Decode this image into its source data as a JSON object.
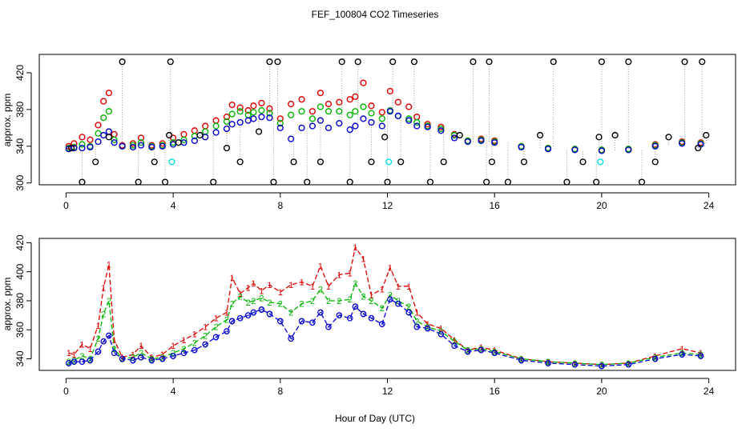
{
  "title": "FEF_100804  CO2 Timeseries",
  "xlabel": "Hour of Day (UTC)",
  "colors": {
    "c1": "#e00000",
    "c2": "#00b400",
    "c3": "#0000d0",
    "black": "#000000",
    "cyan": "#00e0e0",
    "grey": "#999999"
  },
  "chart_data": [
    {
      "type": "scatter",
      "ylabel": "approx. ppm",
      "xlim": [
        -1,
        25
      ],
      "ylim": [
        298,
        440
      ],
      "xticks": [
        "0",
        "4",
        "8",
        "12",
        "16",
        "20",
        "24"
      ],
      "yticks": [
        "300",
        "340",
        "380",
        "420"
      ],
      "xtick_values": [
        0,
        4,
        8,
        12,
        16,
        20,
        24
      ],
      "ytick_values": [
        300,
        340,
        380,
        420
      ],
      "grid": false,
      "series": [
        {
          "color": "#e00000",
          "x": [
            0.1,
            0.3,
            0.6,
            0.9,
            1.2,
            1.4,
            1.6,
            1.8,
            2.1,
            2.5,
            2.8,
            3.2,
            3.6,
            4.0,
            4.4,
            4.8,
            5.2,
            5.6,
            6.0,
            6.2,
            6.5,
            6.8,
            7.0,
            7.3,
            7.6,
            8.0,
            8.4,
            8.8,
            9.2,
            9.5,
            9.8,
            10.2,
            10.6,
            10.8,
            11.1,
            11.4,
            11.8,
            12.1,
            12.4,
            12.8,
            13.1,
            13.5,
            14.0,
            14.5,
            15.0,
            15.5,
            16.0,
            17.0,
            18.0,
            19.0,
            20.0,
            21.0,
            22.0,
            23.0,
            23.7
          ],
          "y": [
            340,
            343,
            350,
            347,
            363,
            389,
            398,
            353,
            341,
            343,
            349,
            341,
            343,
            349,
            353,
            357,
            362,
            368,
            372,
            385,
            382,
            379,
            384,
            387,
            381,
            370,
            386,
            391,
            378,
            398,
            386,
            388,
            391,
            394,
            409,
            384,
            377,
            400,
            388,
            383,
            372,
            364,
            361,
            353,
            346,
            348,
            346,
            340,
            338,
            337,
            336,
            337,
            342,
            345,
            344
          ]
        },
        {
          "color": "#00b400",
          "x": [
            0.1,
            0.3,
            0.6,
            0.9,
            1.2,
            1.4,
            1.6,
            1.8,
            2.1,
            2.5,
            2.8,
            3.2,
            3.6,
            4.0,
            4.4,
            4.8,
            5.2,
            5.6,
            6.0,
            6.2,
            6.5,
            6.8,
            7.0,
            7.3,
            7.6,
            8.0,
            8.4,
            8.8,
            9.2,
            9.5,
            9.8,
            10.2,
            10.6,
            10.8,
            11.1,
            11.4,
            11.8,
            12.1,
            12.4,
            12.8,
            13.1,
            13.5,
            14.0,
            14.5,
            15.0,
            15.5,
            16.0,
            17.0,
            18.0,
            19.0,
            20.0,
            21.0,
            22.0,
            23.0,
            23.7
          ],
          "y": [
            338,
            339,
            342,
            340,
            354,
            371,
            378,
            347,
            340,
            341,
            344,
            340,
            341,
            344,
            347,
            351,
            356,
            362,
            367,
            375,
            378,
            374,
            377,
            379,
            376,
            365,
            374,
            378,
            370,
            383,
            378,
            378,
            374,
            378,
            383,
            376,
            370,
            379,
            373,
            370,
            366,
            362,
            359,
            352,
            346,
            347,
            345,
            340,
            338,
            337,
            336,
            337,
            341,
            344,
            343
          ]
        },
        {
          "color": "#0000d0",
          "x": [
            0.1,
            0.3,
            0.6,
            0.9,
            1.2,
            1.4,
            1.6,
            1.8,
            2.1,
            2.5,
            2.8,
            3.2,
            3.6,
            4.0,
            4.4,
            4.8,
            5.2,
            5.6,
            6.0,
            6.2,
            6.5,
            6.8,
            7.0,
            7.3,
            7.6,
            8.0,
            8.4,
            8.8,
            9.2,
            9.5,
            9.8,
            10.2,
            10.6,
            10.8,
            11.1,
            11.4,
            11.8,
            12.1,
            12.4,
            12.8,
            13.1,
            13.5,
            14.0,
            14.5,
            15.0,
            15.5,
            16.0,
            17.0,
            18.0,
            19.0,
            20.0,
            21.0,
            22.0,
            23.0,
            23.7
          ],
          "y": [
            337,
            338,
            338,
            339,
            345,
            352,
            356,
            344,
            340,
            339,
            341,
            339,
            340,
            342,
            344,
            346,
            350,
            355,
            359,
            364,
            366,
            368,
            370,
            372,
            371,
            360,
            348,
            360,
            362,
            368,
            360,
            365,
            358,
            362,
            370,
            366,
            362,
            378,
            373,
            368,
            362,
            361,
            357,
            349,
            345,
            346,
            344,
            339,
            337,
            336,
            335,
            336,
            340,
            343,
            342
          ]
        },
        {
          "color": "#000000",
          "x": [
            0.2,
            0.6,
            1.1,
            1.6,
            2.1,
            2.7,
            3.3,
            3.7,
            3.85,
            3.9,
            4.2,
            5.0,
            5.5,
            6.0,
            6.5,
            7.2,
            7.6,
            7.75,
            7.9,
            8.5,
            9.0,
            9.5,
            10.3,
            10.6,
            10.9,
            11.4,
            11.9,
            12.0,
            12.2,
            12.5,
            13.0,
            13.6,
            14.1,
            14.7,
            15.2,
            15.7,
            15.8,
            15.9,
            16.5,
            17.1,
            17.7,
            18.2,
            18.7,
            19.3,
            19.8,
            19.9,
            20.0,
            20.5,
            21.0,
            21.5,
            22.0,
            22.5,
            23.1,
            23.6,
            23.75,
            23.9
          ],
          "y": [
            338,
            301,
            323,
            350,
            432,
            301,
            323,
            301,
            352,
            432,
            344,
            352,
            301,
            338,
            323,
            356,
            432,
            301,
            432,
            323,
            301,
            323,
            432,
            301,
            432,
            323,
            350,
            301,
            432,
            323,
            432,
            301,
            323,
            352,
            432,
            301,
            432,
            323,
            301,
            323,
            352,
            432,
            301,
            323,
            301,
            350,
            432,
            352,
            432,
            301,
            323,
            350,
            432,
            338,
            432,
            352
          ]
        },
        {
          "color": "#00e0e0",
          "x": [
            3.95,
            12.05,
            19.95
          ],
          "y": [
            323,
            323,
            323
          ]
        }
      ]
    },
    {
      "type": "line",
      "ylabel": "approx. ppm",
      "xlim": [
        -1,
        25
      ],
      "ylim": [
        332,
        423
      ],
      "xticks": [
        "0",
        "4",
        "8",
        "12",
        "16",
        "20",
        "24"
      ],
      "yticks": [
        "340",
        "360",
        "380",
        "400",
        "420"
      ],
      "xtick_values": [
        0,
        4,
        8,
        12,
        16,
        20,
        24
      ],
      "ytick_values": [
        340,
        360,
        380,
        400,
        420
      ],
      "grid": false,
      "series": [
        {
          "marker": "1",
          "color": "#e00000",
          "x": [
            0.1,
            0.3,
            0.6,
            0.9,
            1.2,
            1.4,
            1.6,
            1.8,
            2.1,
            2.5,
            2.8,
            3.2,
            3.6,
            4.0,
            4.4,
            4.8,
            5.2,
            5.6,
            6.0,
            6.2,
            6.5,
            6.8,
            7.0,
            7.3,
            7.6,
            8.0,
            8.4,
            8.8,
            9.2,
            9.5,
            9.8,
            10.2,
            10.6,
            10.8,
            11.1,
            11.4,
            11.8,
            12.1,
            12.4,
            12.8,
            13.1,
            13.5,
            14.0,
            14.5,
            15.0,
            15.5,
            16.0,
            17.0,
            18.0,
            19.0,
            20.0,
            21.0,
            22.0,
            23.0,
            23.7
          ],
          "y": [
            344,
            343,
            350,
            347,
            363,
            389,
            405,
            353,
            341,
            343,
            349,
            341,
            343,
            349,
            353,
            357,
            362,
            368,
            372,
            396,
            385,
            389,
            392,
            387,
            391,
            386,
            391,
            393,
            390,
            404,
            390,
            398,
            399,
            417,
            409,
            384,
            388,
            403,
            390,
            390,
            372,
            364,
            361,
            353,
            346,
            348,
            346,
            340,
            338,
            337,
            336,
            337,
            342,
            347,
            344
          ]
        },
        {
          "marker": "2",
          "color": "#00b400",
          "x": [
            0.1,
            0.3,
            0.6,
            0.9,
            1.2,
            1.4,
            1.6,
            1.8,
            2.1,
            2.5,
            2.8,
            3.2,
            3.6,
            4.0,
            4.4,
            4.8,
            5.2,
            5.6,
            6.0,
            6.2,
            6.5,
            6.8,
            7.0,
            7.3,
            7.6,
            8.0,
            8.4,
            8.8,
            9.2,
            9.5,
            9.8,
            10.2,
            10.6,
            10.8,
            11.1,
            11.4,
            11.8,
            12.1,
            12.4,
            12.8,
            13.1,
            13.5,
            14.0,
            14.5,
            15.0,
            15.5,
            16.0,
            17.0,
            18.0,
            19.0,
            20.0,
            21.0,
            22.0,
            23.0,
            23.7
          ],
          "y": [
            338,
            339,
            342,
            340,
            354,
            371,
            380,
            347,
            340,
            341,
            344,
            340,
            341,
            344,
            347,
            351,
            356,
            362,
            367,
            378,
            383,
            379,
            380,
            382,
            379,
            378,
            372,
            378,
            380,
            388,
            380,
            380,
            381,
            392,
            383,
            380,
            375,
            384,
            380,
            376,
            366,
            362,
            359,
            352,
            346,
            347,
            345,
            340,
            338,
            337,
            336,
            337,
            341,
            344,
            343
          ]
        },
        {
          "marker": "3",
          "color": "#0000d0",
          "x": [
            0.1,
            0.3,
            0.6,
            0.9,
            1.2,
            1.4,
            1.6,
            1.8,
            2.1,
            2.5,
            2.8,
            3.2,
            3.6,
            4.0,
            4.4,
            4.8,
            5.2,
            5.6,
            6.0,
            6.2,
            6.5,
            6.8,
            7.0,
            7.3,
            7.6,
            8.0,
            8.4,
            8.8,
            9.2,
            9.5,
            9.8,
            10.2,
            10.6,
            10.8,
            11.1,
            11.4,
            11.8,
            12.1,
            12.4,
            12.8,
            13.1,
            13.5,
            14.0,
            14.5,
            15.0,
            15.5,
            16.0,
            17.0,
            18.0,
            19.0,
            20.0,
            21.0,
            22.0,
            23.0,
            23.7
          ],
          "y": [
            337,
            338,
            338,
            339,
            345,
            352,
            356,
            344,
            340,
            339,
            341,
            339,
            340,
            342,
            344,
            346,
            350,
            355,
            359,
            366,
            368,
            370,
            372,
            374,
            371,
            366,
            354,
            366,
            365,
            372,
            362,
            370,
            368,
            376,
            371,
            368,
            364,
            381,
            378,
            372,
            362,
            361,
            357,
            349,
            345,
            346,
            344,
            339,
            337,
            336,
            335,
            336,
            340,
            343,
            342
          ]
        }
      ]
    }
  ]
}
